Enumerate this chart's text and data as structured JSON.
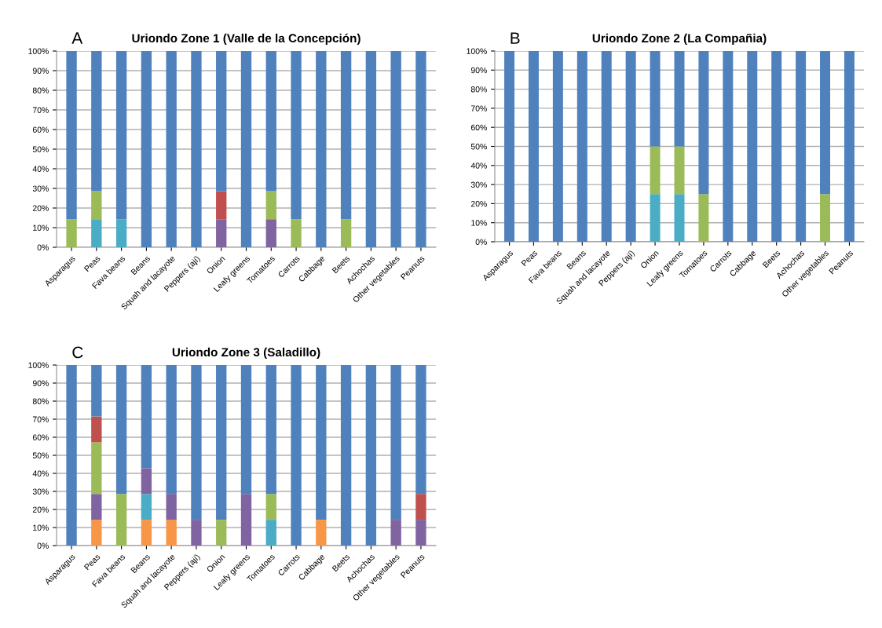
{
  "chart_data": [
    {
      "type": "bar",
      "stacked": true,
      "title": "Uriondo Zone 1 (Valle de la Concepción)",
      "annotations": [
        "A"
      ],
      "categories": [
        "Asparagus",
        "Peas",
        "Fava beans",
        "Beans",
        "Squah and lacayote",
        "Peppers (ají)",
        "Onion",
        "Leafy greens",
        "Tomatoes",
        "Carrots",
        "Cabbage",
        "Beets",
        "Achochas",
        "Other vegetables",
        "Peanuts"
      ],
      "series": [
        {
          "color": "#4bacc6",
          "values": [
            0,
            14.3,
            14.3,
            0,
            0,
            0,
            0,
            0,
            0,
            0,
            0,
            0,
            0,
            0,
            0
          ]
        },
        {
          "color": "#8064a2",
          "values": [
            0,
            0,
            0,
            0,
            0,
            0,
            14.3,
            0,
            14.3,
            0,
            0,
            0,
            0,
            0,
            0
          ]
        },
        {
          "color": "#9bbb59",
          "values": [
            14.3,
            14.3,
            0,
            0,
            0,
            0,
            0,
            0,
            14.3,
            14.3,
            0,
            14.3,
            0,
            0,
            0
          ]
        },
        {
          "color": "#c0504d",
          "values": [
            0,
            0,
            0,
            0,
            0,
            0,
            14.3,
            0,
            0,
            0,
            0,
            0,
            0,
            0,
            0
          ]
        },
        {
          "color": "#4f81bd",
          "values": [
            85.7,
            71.4,
            85.7,
            100,
            100,
            100,
            71.4,
            100,
            71.4,
            85.7,
            100,
            85.7,
            100,
            100,
            100
          ]
        }
      ],
      "ylim": [
        0,
        100
      ],
      "yticks": [
        {
          "value": 0,
          "label": "0%"
        },
        {
          "value": 10,
          "label": "10%"
        },
        {
          "value": 20,
          "label": "20%"
        },
        {
          "value": 30,
          "label": "30%"
        },
        {
          "value": 40,
          "label": "40%"
        },
        {
          "value": 50,
          "label": "50%"
        },
        {
          "value": 60,
          "label": "60%"
        },
        {
          "value": 70,
          "label": "70%"
        },
        {
          "value": 80,
          "label": "80%"
        },
        {
          "value": 90,
          "label": "90%"
        },
        {
          "value": 100,
          "label": "100%"
        }
      ],
      "grid": "y"
    },
    {
      "type": "bar",
      "stacked": true,
      "title": "Uriondo Zone 2 (La Compañia)",
      "annotations": [
        "B"
      ],
      "categories": [
        "Asparagus",
        "Peas",
        "Fava beans",
        "Beans",
        "Squah and lacayote",
        "Peppers (ají)",
        "Onion",
        "Leafy greens",
        "Tomatoes",
        "Carrots",
        "Cabbage",
        "Beets",
        "Achochas",
        "Other vegetables",
        "Peanuts"
      ],
      "series": [
        {
          "color": "#4bacc6",
          "values": [
            0,
            0,
            0,
            0,
            0,
            0,
            25,
            25,
            0,
            0,
            0,
            0,
            0,
            0,
            0
          ]
        },
        {
          "color": "#9bbb59",
          "values": [
            0,
            0,
            0,
            0,
            0,
            0,
            25,
            25,
            25,
            0,
            0,
            0,
            0,
            25,
            0
          ]
        },
        {
          "color": "#4f81bd",
          "values": [
            100,
            100,
            100,
            100,
            100,
            100,
            50,
            50,
            75,
            100,
            100,
            100,
            100,
            75,
            100
          ]
        }
      ],
      "ylim": [
        0,
        100
      ],
      "yticks": [
        {
          "value": 0,
          "label": "0%"
        },
        {
          "value": 10,
          "label": "10%"
        },
        {
          "value": 20,
          "label": "20%"
        },
        {
          "value": 30,
          "label": "30%"
        },
        {
          "value": 40,
          "label": "40%"
        },
        {
          "value": 50,
          "label": "50%"
        },
        {
          "value": 60,
          "label": "60%"
        },
        {
          "value": 70,
          "label": "70%"
        },
        {
          "value": 80,
          "label": "80%"
        },
        {
          "value": 90,
          "label": "90%"
        },
        {
          "value": 100,
          "label": "100%"
        }
      ],
      "grid": "y"
    },
    {
      "type": "bar",
      "stacked": true,
      "title": "Uriondo Zone 3 (Saladillo)",
      "annotations": [
        "C"
      ],
      "categories": [
        "Asparagus",
        "Peas",
        "Fava beans",
        "Beans",
        "Squah and lacayote",
        "Peppers (ají)",
        "Onion",
        "Leafy greens",
        "Tomatoes",
        "Carrots",
        "Cabbage",
        "Beets",
        "Achochas",
        "Other vegetables",
        "Peanuts"
      ],
      "series": [
        {
          "color": "#f79646",
          "values": [
            0,
            14.3,
            0,
            14.3,
            14.3,
            0,
            0,
            0,
            0,
            0,
            14.3,
            0,
            0,
            0,
            0
          ]
        },
        {
          "color": "#4bacc6",
          "values": [
            0,
            0,
            0,
            14.3,
            0,
            0,
            0,
            0,
            14.3,
            0,
            0,
            0,
            0,
            0,
            0
          ]
        },
        {
          "color": "#8064a2",
          "values": [
            0,
            14.3,
            0,
            14.3,
            14.3,
            14.3,
            0,
            28.6,
            0,
            0,
            0,
            0,
            0,
            14.3,
            14.3
          ]
        },
        {
          "color": "#9bbb59",
          "values": [
            0,
            28.6,
            28.6,
            0,
            0,
            0,
            14.3,
            0,
            14.3,
            0,
            0,
            0,
            0,
            0,
            0
          ]
        },
        {
          "color": "#c0504d",
          "values": [
            0,
            14.3,
            0,
            0,
            0,
            0,
            0,
            0,
            0,
            0,
            0,
            0,
            0,
            0,
            14.3
          ]
        },
        {
          "color": "#4f81bd",
          "values": [
            100,
            28.6,
            71.4,
            57.1,
            71.4,
            85.7,
            85.7,
            71.4,
            71.4,
            100,
            85.7,
            100,
            100,
            85.7,
            71.4
          ]
        }
      ],
      "ylim": [
        0,
        100
      ],
      "yticks": [
        {
          "value": 0,
          "label": "0%"
        },
        {
          "value": 10,
          "label": "10%"
        },
        {
          "value": 20,
          "label": "20%"
        },
        {
          "value": 30,
          "label": "30%"
        },
        {
          "value": 40,
          "label": "40%"
        },
        {
          "value": 50,
          "label": "50%"
        },
        {
          "value": 60,
          "label": "60%"
        },
        {
          "value": 70,
          "label": "70%"
        },
        {
          "value": 80,
          "label": "80%"
        },
        {
          "value": 90,
          "label": "90%"
        },
        {
          "value": 100,
          "label": "100%"
        }
      ],
      "grid": "y"
    }
  ]
}
